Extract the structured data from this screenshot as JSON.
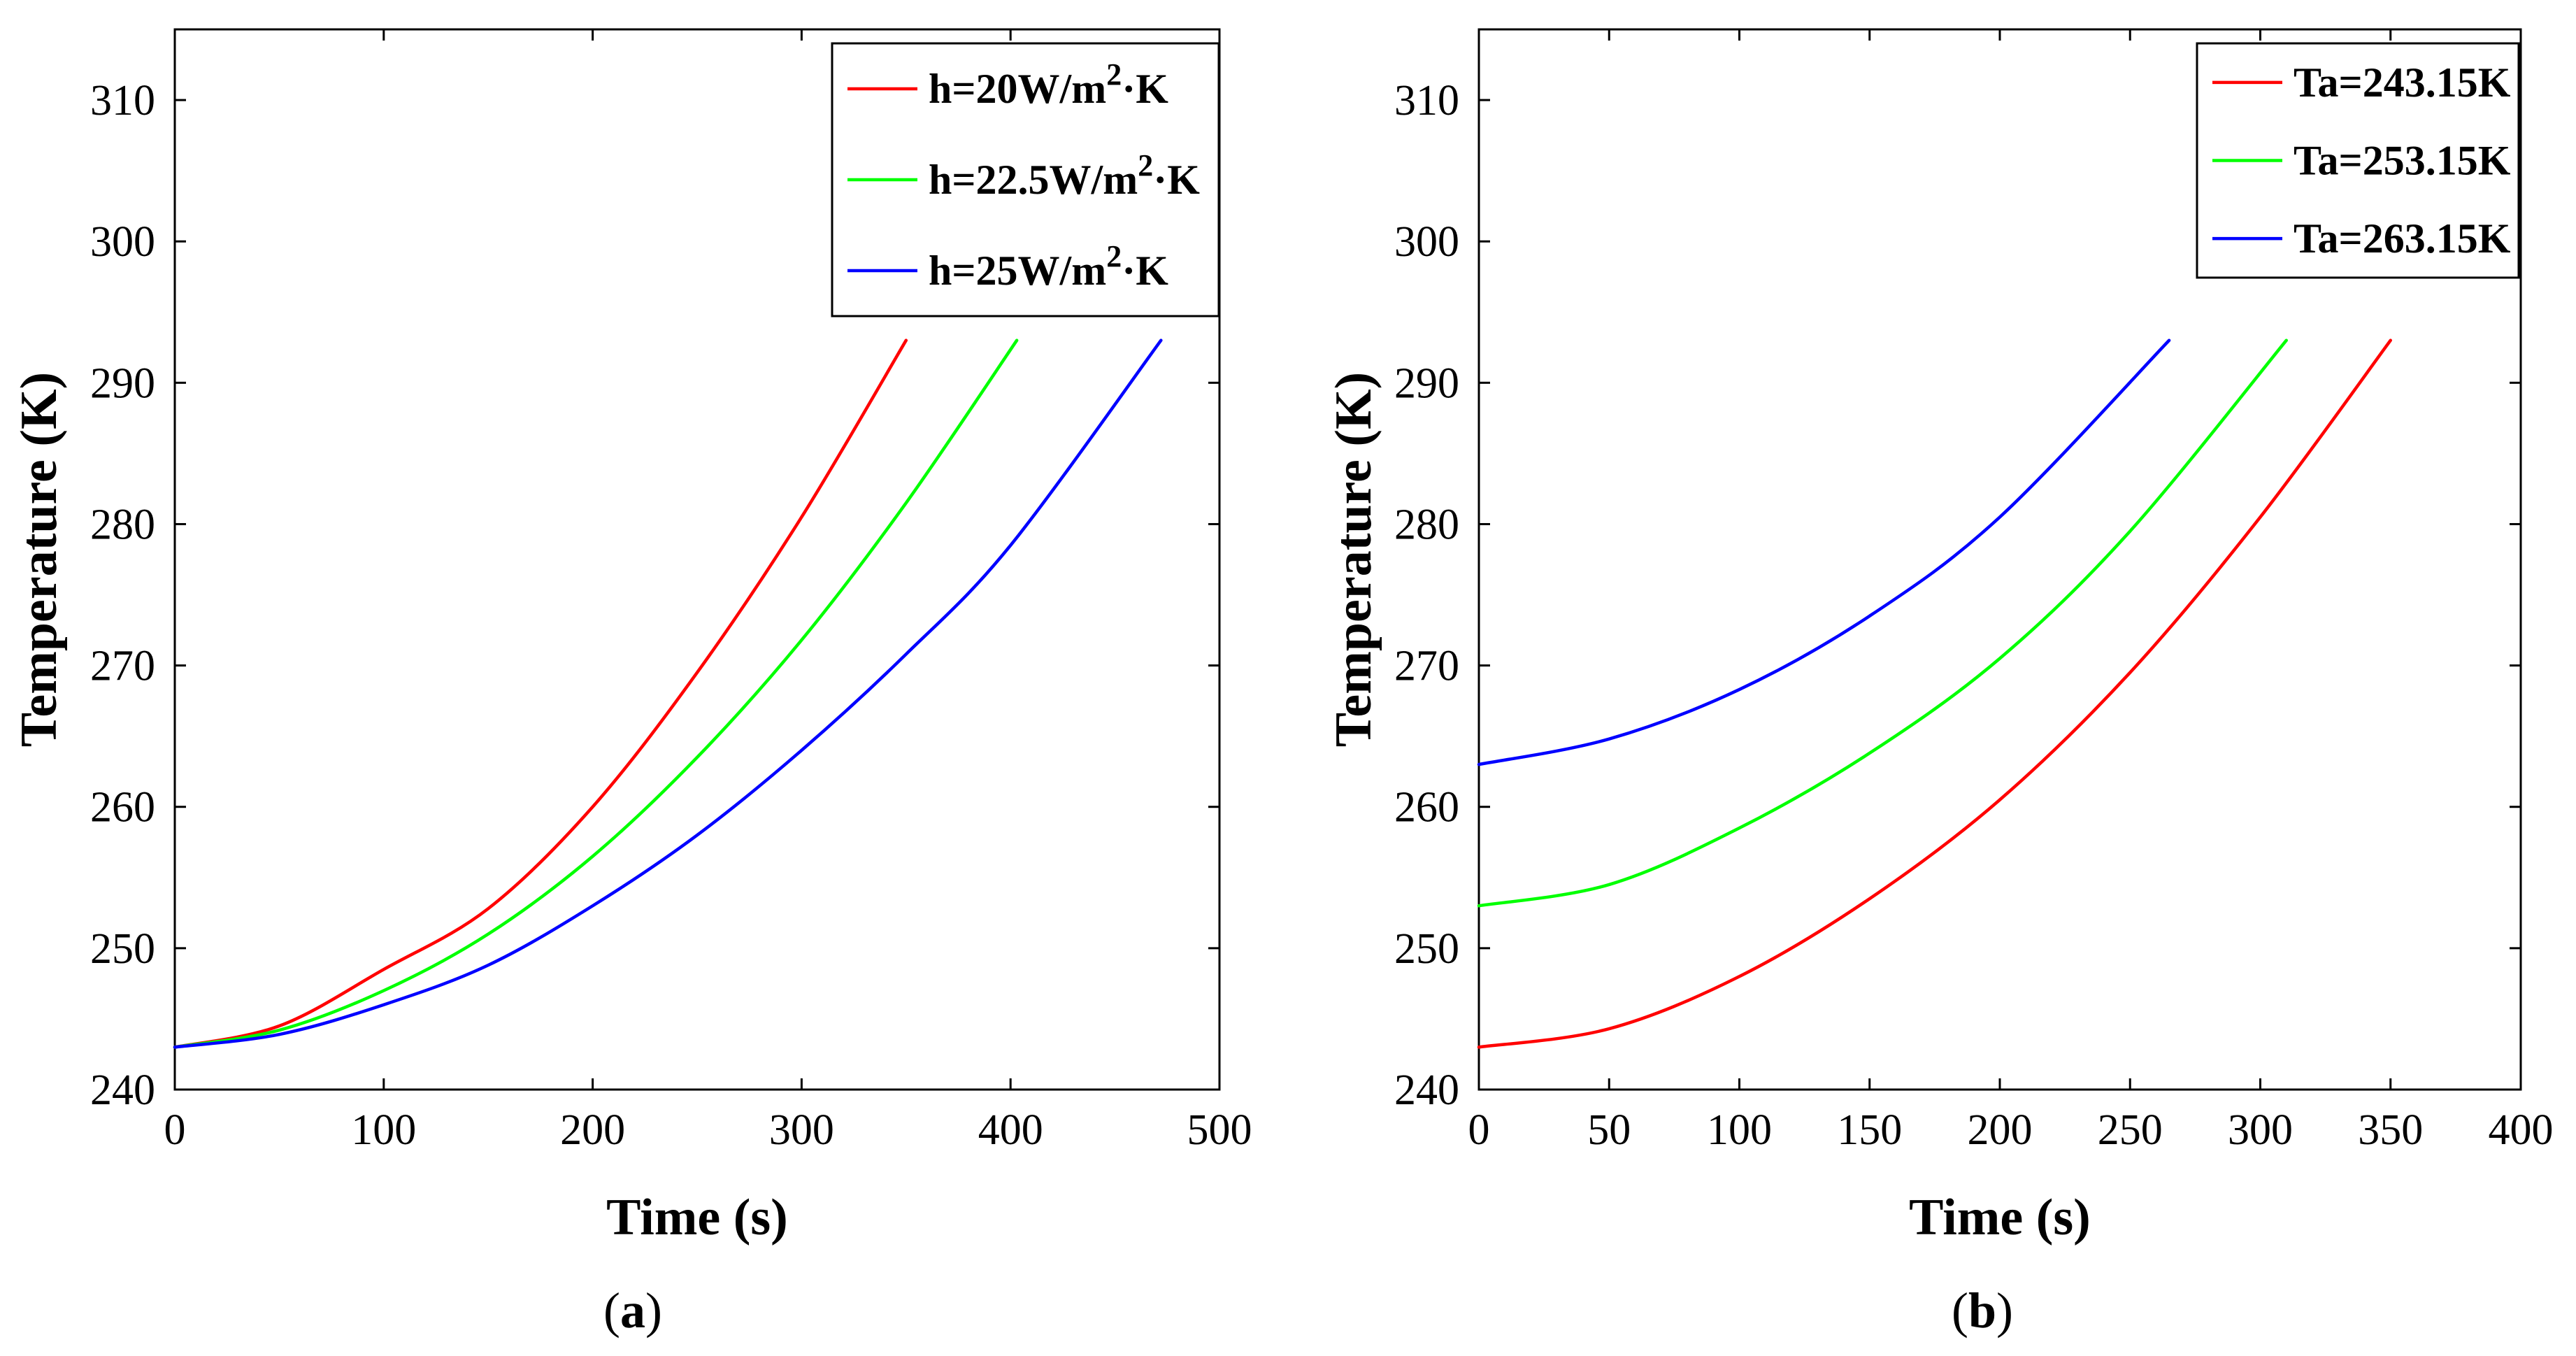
{
  "chart_data": [
    {
      "type": "line",
      "panel": "a",
      "caption": "a",
      "xlabel": "Time (s)",
      "ylabel": "Temperature (K)",
      "xlim": [
        0,
        500
      ],
      "ylim": [
        240,
        315
      ],
      "xticks": [
        0,
        100,
        200,
        300,
        400,
        500
      ],
      "yticks": [
        240,
        250,
        260,
        270,
        280,
        290,
        300,
        310
      ],
      "legend_position": "top-right",
      "series": [
        {
          "name": "h=20W/m2·K",
          "legend": {
            "prefix": "h=20W/m",
            "sup": "2",
            "suffix": "·K"
          },
          "color": "#ff0000",
          "x": [
            0,
            50,
            100,
            150,
            200,
            250,
            300,
            350
          ],
          "y": [
            243.0,
            244.5,
            248.5,
            252.8,
            260.0,
            269.5,
            280.5,
            293.0
          ]
        },
        {
          "name": "h=22.5W/m2·K",
          "legend": {
            "prefix": "h=22.5W/m",
            "sup": "2",
            "suffix": "·K"
          },
          "color": "#00ff00",
          "x": [
            0,
            50,
            100,
            150,
            200,
            250,
            300,
            350,
            403
          ],
          "y": [
            243.0,
            244.2,
            247.0,
            251.0,
            256.5,
            263.5,
            271.8,
            281.5,
            293.0
          ]
        },
        {
          "name": "h=25W/m2·K",
          "legend": {
            "prefix": "h=25W/m",
            "sup": "2",
            "suffix": "·K"
          },
          "color": "#0000ff",
          "x": [
            0,
            50,
            100,
            150,
            200,
            250,
            300,
            350,
            400,
            472
          ],
          "y": [
            243.0,
            243.9,
            246.0,
            248.8,
            253.0,
            258.0,
            264.0,
            270.8,
            278.5,
            293.0
          ]
        }
      ]
    },
    {
      "type": "line",
      "panel": "b",
      "caption": "b",
      "xlabel": "Time (s)",
      "ylabel": "Temperature (K)",
      "xlim": [
        0,
        400
      ],
      "ylim": [
        240,
        315
      ],
      "xticks": [
        0,
        50,
        100,
        150,
        200,
        250,
        300,
        350,
        400
      ],
      "yticks": [
        240,
        250,
        260,
        270,
        280,
        290,
        300,
        310
      ],
      "legend_position": "top-right",
      "series": [
        {
          "name": "Ta=243.15K",
          "legend": {
            "prefix": "Ta=243.15K",
            "sup": "",
            "suffix": ""
          },
          "color": "#ff0000",
          "x": [
            0,
            50,
            100,
            150,
            200,
            250,
            300,
            350
          ],
          "y": [
            243.0,
            244.3,
            248.0,
            253.5,
            260.5,
            269.5,
            280.5,
            293.0
          ]
        },
        {
          "name": "Ta=253.15K",
          "legend": {
            "prefix": "Ta=253.15K",
            "sup": "",
            "suffix": ""
          },
          "color": "#00ff00",
          "x": [
            0,
            50,
            100,
            150,
            200,
            250,
            310
          ],
          "y": [
            253.0,
            254.5,
            258.5,
            263.8,
            270.5,
            279.5,
            293.0
          ]
        },
        {
          "name": "Ta=263.15K",
          "legend": {
            "prefix": "Ta=263.15K",
            "sup": "",
            "suffix": ""
          },
          "color": "#0000ff",
          "x": [
            0,
            50,
            100,
            150,
            200,
            265
          ],
          "y": [
            263.0,
            264.8,
            268.3,
            273.5,
            280.5,
            293.0
          ]
        }
      ]
    }
  ]
}
